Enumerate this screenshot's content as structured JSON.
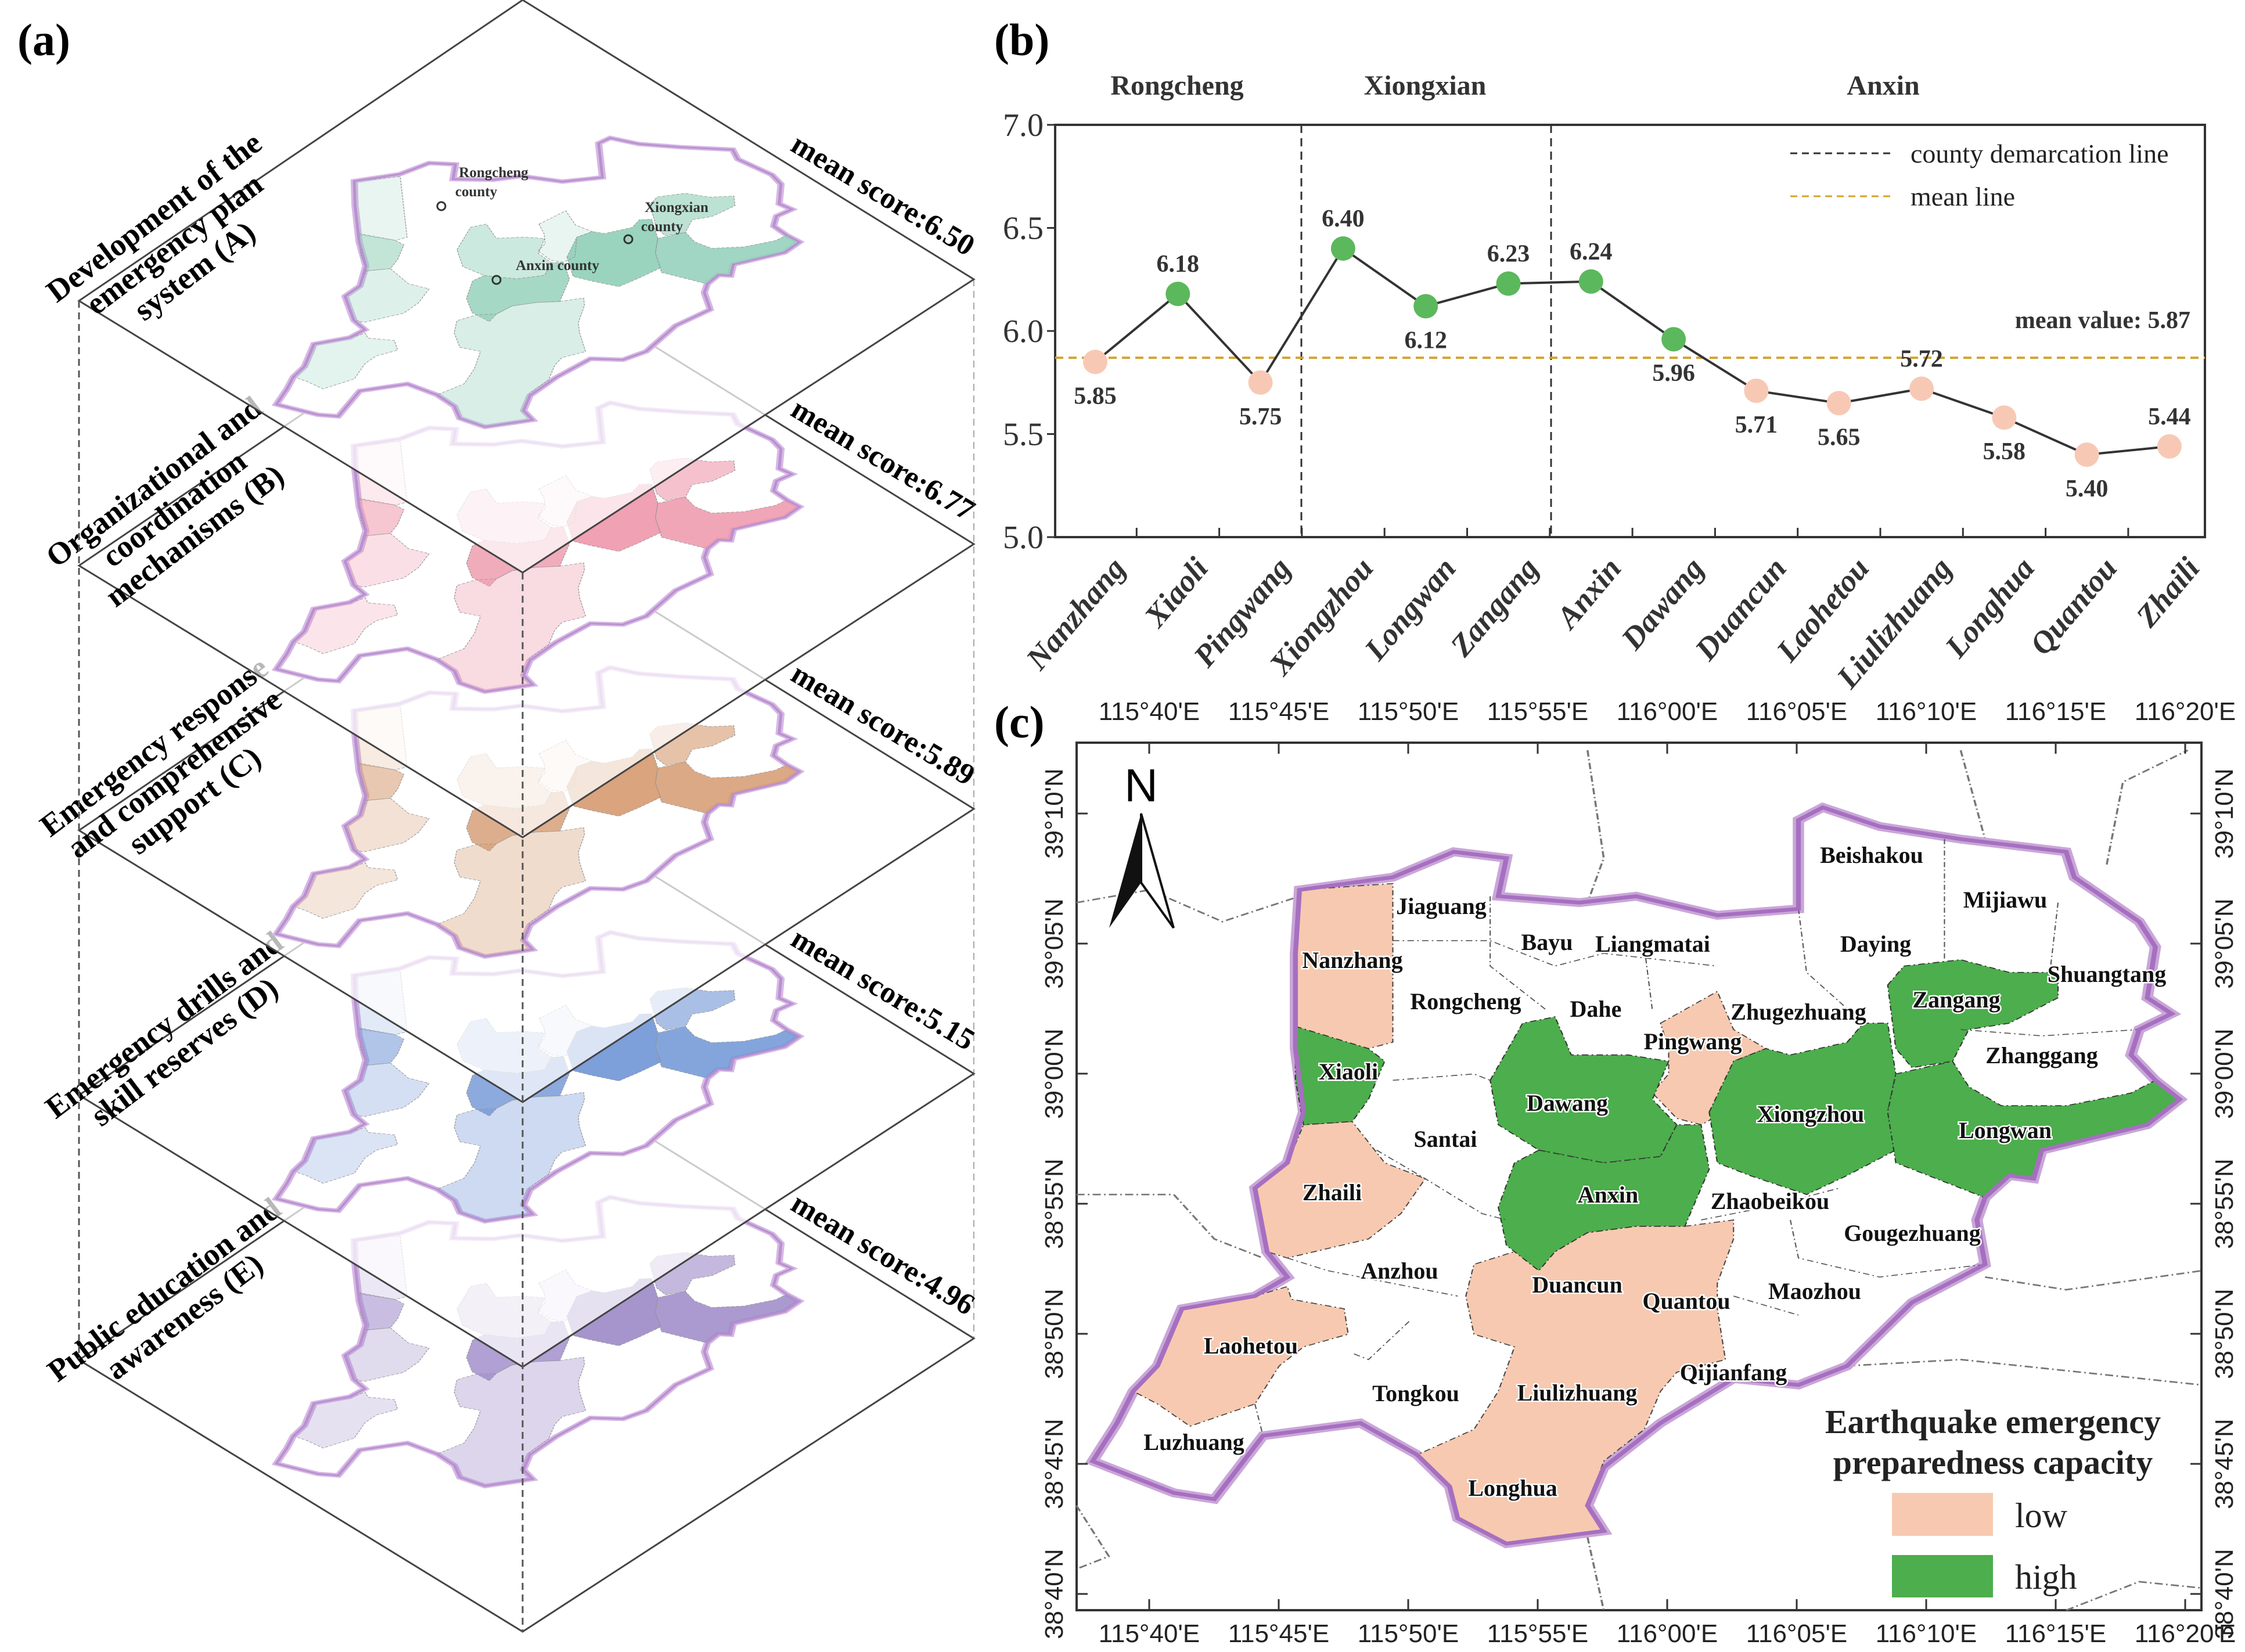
{
  "panel_a": {
    "label": "(a)",
    "county_labels": {
      "rongcheng": [
        "Rongcheng",
        "county"
      ],
      "xiongxian": [
        "Xiongxian",
        "county"
      ],
      "anxin": "Anxin county"
    },
    "layers": [
      {
        "title": [
          "Development of the",
          "emergency plan",
          "system (A)"
        ],
        "mean_score": "mean score:6.50",
        "color": "#8fcfb8"
      },
      {
        "title": [
          "Organizational and",
          "coordination",
          "mechanisms (B)"
        ],
        "mean_score": "mean score:6.77",
        "color": "#ee97ab"
      },
      {
        "title": [
          "Emergency response",
          "and comprehensive",
          "support (C)"
        ],
        "mean_score": "mean score:5.89",
        "color": "#d59a70"
      },
      {
        "title": [
          "Emergency drills and",
          "skill reserves (D)"
        ],
        "mean_score": "mean score:5.15",
        "color": "#6f95d6"
      },
      {
        "title": [
          "Public education and",
          "awareness (E)"
        ],
        "mean_score": "mean score:4.96",
        "color": "#9c88c8"
      }
    ]
  },
  "chart_data": {
    "type": "line",
    "label": "(b)",
    "groups": [
      {
        "name": "Rongcheng",
        "members": [
          "Nanzhang",
          "Xiaoli",
          "Pingwang"
        ]
      },
      {
        "name": "Xiongxian",
        "members": [
          "Xiongzhou",
          "Longwan",
          "Zangang"
        ]
      },
      {
        "name": "Anxin",
        "members": [
          "Anxin",
          "Dawang",
          "Duancun",
          "Laohetou",
          "Liulizhuang",
          "Longhua",
          "Quantou",
          "Zhaili"
        ]
      }
    ],
    "categories": [
      "Nanzhang",
      "Xiaoli",
      "Pingwang",
      "Xiongzhou",
      "Longwan",
      "Zangang",
      "Anxin",
      "Dawang",
      "Duancun",
      "Laohetou",
      "Liulizhuang",
      "Longhua",
      "Quantou",
      "Zhaili"
    ],
    "values": [
      5.85,
      6.18,
      5.75,
      6.4,
      6.12,
      6.23,
      6.24,
      5.96,
      5.71,
      5.65,
      5.72,
      5.58,
      5.4,
      5.44
    ],
    "value_labels": [
      "5.85",
      "6.18",
      "5.75",
      "6.40",
      "6.12",
      "6.23",
      "6.24",
      "5.96",
      "5.71",
      "5.65",
      "5.72",
      "5.58",
      "5.40",
      "5.44"
    ],
    "levels": [
      "low",
      "high",
      "low",
      "high",
      "high",
      "high",
      "high",
      "high",
      "low",
      "low",
      "low",
      "low",
      "low",
      "low"
    ],
    "ylim": [
      5.0,
      7.0
    ],
    "yticks": [
      "5.0",
      "5.5",
      "6.0",
      "6.5",
      "7.0"
    ],
    "mean": 5.87,
    "mean_label": "mean value:  5.87",
    "legend": {
      "demarcation": "county demarcation line",
      "mean": "mean line",
      "placement": "top-right"
    },
    "colors": {
      "low": "#f7c9b5",
      "high": "#5cb85c",
      "mean_line": "#d4a32c",
      "line": "#333333"
    }
  },
  "panel_c": {
    "label": "(c)",
    "north": "N",
    "lon_ticks": [
      "115°40'E",
      "115°45'E",
      "115°50'E",
      "115°55'E",
      "116°00'E",
      "116°05'E",
      "116°10'E",
      "116°15'E",
      "116°20'E"
    ],
    "lat_ticks": [
      "39°10'N",
      "39°05'N",
      "39°00'N",
      "38°55'N",
      "38°50'N",
      "38°45'N",
      "38°40'N"
    ],
    "towns": [
      "Jiaguang",
      "Nanzhang",
      "Bayu",
      "Liangmatai",
      "Beishakou",
      "Mijiawu",
      "Daying",
      "Shuangtang",
      "Zangang",
      "Rongcheng",
      "Dahe",
      "Zhugezhuang",
      "Pingwang",
      "Zhanggang",
      "Xiaoli",
      "Dawang",
      "Xiongzhou",
      "Longwan",
      "Santai",
      "Zhaili",
      "Anxin",
      "Zhaobeikou",
      "Gougezhuang",
      "Anzhou",
      "Duancun",
      "Quantou",
      "Maozhou",
      "Laohetou",
      "Qijianfang",
      "Tongkou",
      "Liulizhuang",
      "Luzhuang",
      "Longhua"
    ],
    "legend": {
      "title": [
        "Earthquake emergency",
        "preparedness capacity"
      ],
      "low": "low",
      "high": "high"
    },
    "colors": {
      "low": "#f7c9b0",
      "high": "#4cae4c",
      "boundary": "#b07cc6"
    }
  }
}
